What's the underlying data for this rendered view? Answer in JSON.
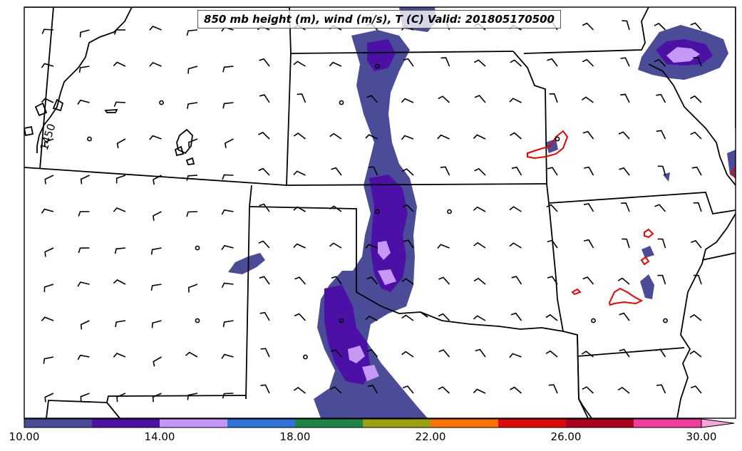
{
  "title": "850 mb height (m), wind (m/s), T (C) Valid: 201805170500",
  "contour_label": "1450",
  "colorbar": {
    "min": 10,
    "max": 30,
    "step": 2,
    "colors": [
      "#4b4c97",
      "#4c10a6",
      "#c597f6",
      "#2f72d9",
      "#1e8546",
      "#9ba20e",
      "#fd7300",
      "#dd0a0a",
      "#a90221",
      "#ef3c9f"
    ],
    "extend_color": "#f7a4d8",
    "tick_labels": [
      "10.00",
      "14.00",
      "18.00",
      "22.00",
      "26.00",
      "30.00"
    ]
  },
  "layer_colors": {
    "speed_10_12": "#4b4c97",
    "speed_12_14": "#4c10a6",
    "speed_14_16": "#c597f6",
    "temperature_contour": "#ee0000",
    "height_contour": "#000000",
    "boundaries": "#000000"
  },
  "wind_field": {
    "description_units": "m/s",
    "rows": 11,
    "cols": 19
  }
}
